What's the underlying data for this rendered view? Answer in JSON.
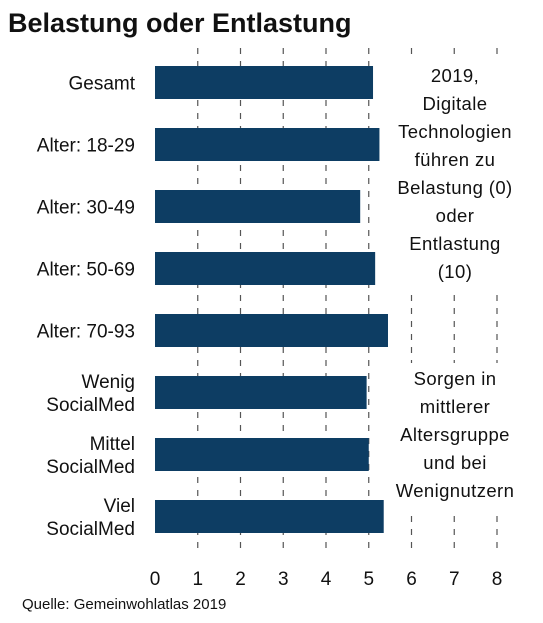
{
  "chart_data": {
    "type": "bar",
    "orientation": "horizontal",
    "title": "Belastung oder Entlastung",
    "categories": [
      [
        "Gesamt"
      ],
      [
        "Alter: 18-29"
      ],
      [
        "Alter: 30-49"
      ],
      [
        "Alter: 50-69"
      ],
      [
        "Alter: 70-93"
      ],
      [
        "Wenig",
        "SocialMed"
      ],
      [
        "Mittel",
        "SocialMed"
      ],
      [
        "Viel",
        "SocialMed"
      ]
    ],
    "values": [
      5.1,
      5.25,
      4.8,
      5.15,
      5.45,
      4.95,
      5.0,
      5.35
    ],
    "xlim": [
      0,
      8
    ],
    "xticks": [
      "0",
      "1",
      "2",
      "3",
      "4",
      "5",
      "6",
      "7",
      "8"
    ],
    "grid": "vertical dashed",
    "bar_color": "#0d3d63",
    "annotations": [
      [
        "2019,",
        "Digitale",
        "Technologien",
        "führen zu",
        "Belastung (0)",
        "oder",
        "Entlastung",
        "(10)"
      ],
      [
        "Sorgen in",
        "mittlerer",
        "Altersgruppe",
        "und bei",
        "Wenignutzern"
      ]
    ],
    "source": "Quelle: Gemeinwohlatlas 2019"
  }
}
